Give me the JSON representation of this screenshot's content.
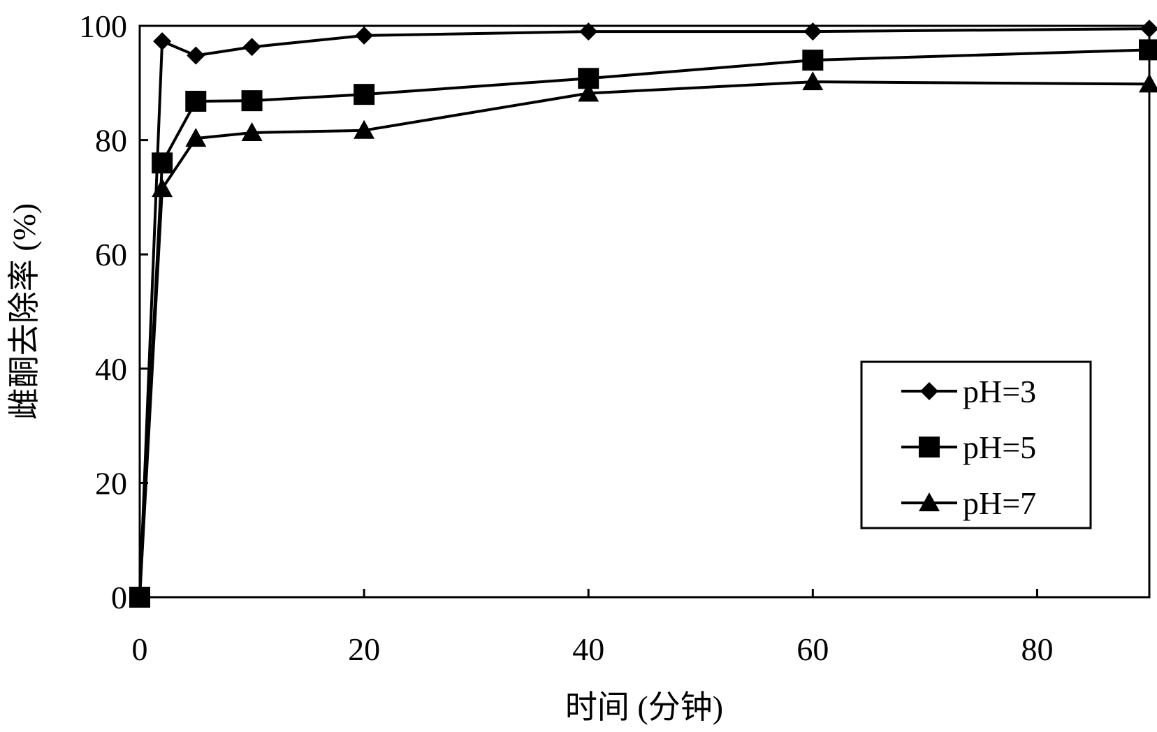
{
  "chart_data": {
    "type": "line",
    "title": "",
    "xlabel": "时间 (分钟)",
    "ylabel": "雌酮去除率 (%)",
    "xlim": [
      0,
      90
    ],
    "ylim": [
      0,
      100
    ],
    "xticks": [
      0,
      20,
      40,
      60,
      80
    ],
    "yticks": [
      0,
      20,
      40,
      60,
      80,
      100
    ],
    "grid": false,
    "legend_position": "bottom-right",
    "x": [
      0,
      2,
      5,
      10,
      20,
      40,
      60,
      90
    ],
    "series": [
      {
        "name": "pH=3",
        "marker": "diamond",
        "color": "#000000",
        "values": [
          0,
          97.3,
          94.8,
          96.3,
          98.3,
          99.0,
          99.0,
          99.5
        ]
      },
      {
        "name": "pH=5",
        "marker": "square",
        "color": "#000000",
        "values": [
          0,
          76.0,
          86.8,
          86.9,
          88.0,
          90.8,
          94.0,
          95.8
        ]
      },
      {
        "name": "pH=7",
        "marker": "triangle",
        "color": "#000000",
        "values": [
          0,
          71.5,
          80.3,
          81.3,
          81.7,
          88.2,
          90.2,
          89.8
        ]
      }
    ]
  }
}
